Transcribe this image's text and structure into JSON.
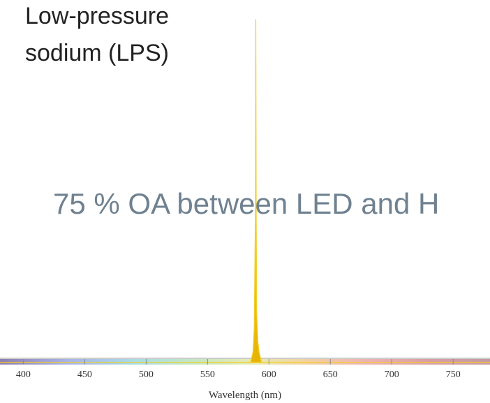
{
  "title_lines": [
    "Low-pressure",
    "sodium (LPS)"
  ],
  "overlay_text": "75 % OA between LED and H",
  "chart_data": {
    "type": "line",
    "title": "Low-pressure sodium (LPS)",
    "xlabel": "Wavelength (nm)",
    "ylabel": "",
    "xlim": [
      381,
      780
    ],
    "ylim": [
      0,
      1
    ],
    "x_ticks": [
      400,
      450,
      500,
      550,
      600,
      650,
      700,
      750
    ],
    "x_tick_labels": [
      "400",
      "450",
      "500",
      "550",
      "600",
      "650",
      "700",
      "750"
    ],
    "spectral_color_bar": true,
    "grid": false,
    "series": [
      {
        "color": "#f3cf2a",
        "x": [
          380,
          585,
          587,
          588,
          589,
          589.3,
          589.6,
          590,
          591,
          592,
          594,
          780
        ],
        "y": [
          0,
          0,
          0.03,
          0.1,
          0.45,
          1.0,
          0.45,
          0.15,
          0.06,
          0.03,
          0,
          0
        ]
      }
    ]
  }
}
